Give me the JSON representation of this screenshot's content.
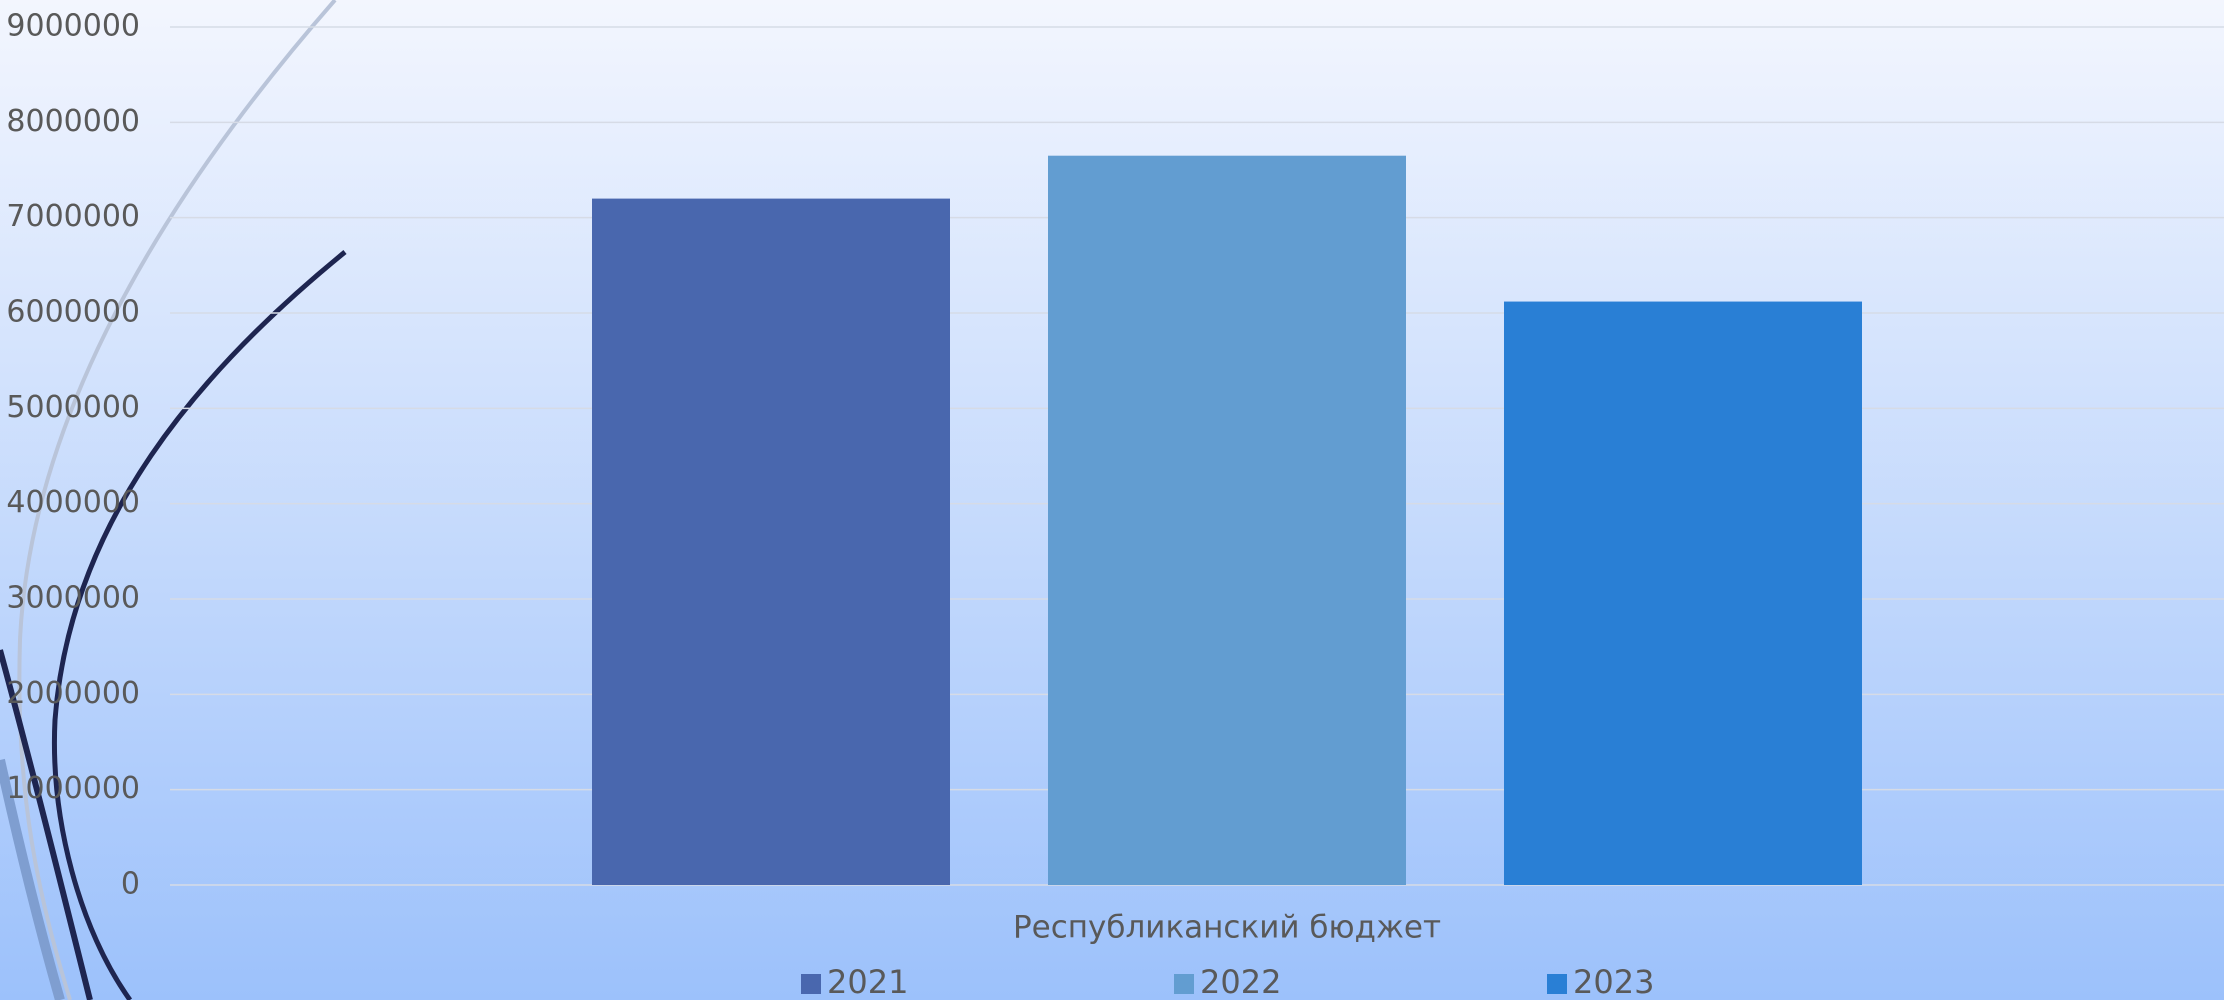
{
  "chart_data": {
    "type": "bar",
    "categories": [
      "Республиканский бюджет"
    ],
    "series": [
      {
        "name": "2021",
        "color": "#4967ae",
        "values": [
          7200000
        ]
      },
      {
        "name": "2022",
        "color": "#629dd1",
        "values": [
          7650000
        ]
      },
      {
        "name": "2023",
        "color": "#297fd5",
        "values": [
          6120000
        ]
      }
    ],
    "ylim": [
      0,
      9000000
    ],
    "yticks": [
      0,
      1000000,
      2000000,
      3000000,
      4000000,
      5000000,
      6000000,
      7000000,
      8000000,
      9000000
    ],
    "grid": true,
    "legend": "bottom"
  }
}
